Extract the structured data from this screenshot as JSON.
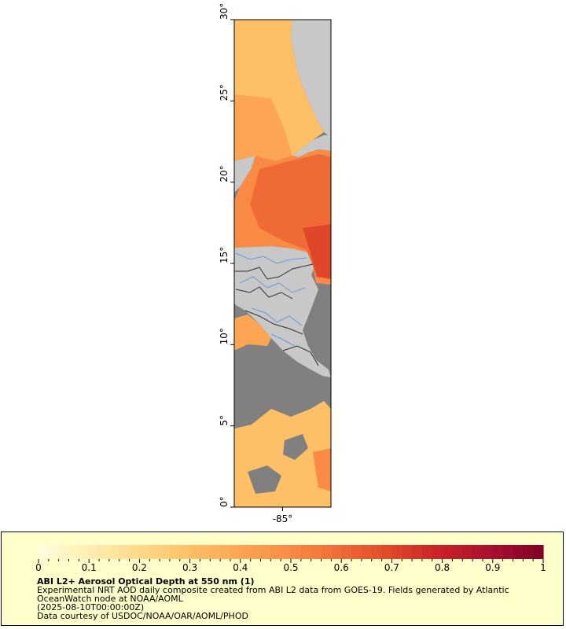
{
  "map": {
    "lat_ticks": [
      {
        "value": 30,
        "label": "30°"
      },
      {
        "value": 25,
        "label": "25°"
      },
      {
        "value": 20,
        "label": "20°"
      },
      {
        "value": 15,
        "label": "15°"
      },
      {
        "value": 10,
        "label": "10°"
      },
      {
        "value": 5,
        "label": "5°"
      },
      {
        "value": 0,
        "label": "0°"
      }
    ],
    "lon_ticks": [
      {
        "value": -85,
        "label": "-85°"
      }
    ],
    "lat_range": [
      0,
      30
    ],
    "lon_range": [
      -88,
      -82
    ],
    "colors": {
      "land": "#c8c8c8",
      "no_data": "#808080",
      "rivers": "#6a9ad8",
      "borders": "#303030"
    }
  },
  "colorbar": {
    "ticks": [
      "0",
      "0.1",
      "0.2",
      "0.3",
      "0.4",
      "0.5",
      "0.6",
      "0.7",
      "0.8",
      "0.9",
      "1"
    ],
    "range": [
      0,
      1
    ],
    "colors": [
      "#fffde0",
      "#ffeeb0",
      "#ffd98a",
      "#fdc067",
      "#fca553",
      "#f98b44",
      "#f06a35",
      "#e0462a",
      "#c8202a",
      "#a80e2e",
      "#800026"
    ]
  },
  "legend": {
    "title": "ABI L2+ Aerosol Optical Depth at 550 nm (1)",
    "description_line1": "Experimental NRT AOD daily composite created from ABI L2 data from GOES-19. Fields generated by Atlantic",
    "description_line2": "OceanWatch node at NOAA/AOML",
    "time": "(2025-08-10T00:00:00Z)",
    "credit": "Data courtesy of USDOC/NOAA/OAR/AOML/PHOD",
    "background": "#ffffcc"
  }
}
